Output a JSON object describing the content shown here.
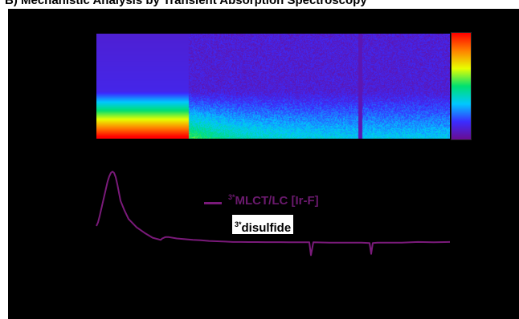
{
  "heading": "B) Mechanistic Analysis by Transient Absorption Spectroscopy",
  "colors": {
    "panel_background": "#000000",
    "trace": "#7a1a7a",
    "legend_text": "#6b1a6e"
  },
  "chart_data": [
    {
      "type": "heatmap",
      "title": "",
      "xlabel": "",
      "ylabel": "",
      "colormap": [
        "#6a0d91",
        "#3b2cff",
        "#00c8ff",
        "#00e070",
        "#e8ff00",
        "#ff8000",
        "#ff0000"
      ],
      "colorbar": "right",
      "features": "strong red signal at lower-left early times decaying into a long-lived green/blue band with a narrow dark line near the right edge"
    },
    {
      "type": "line",
      "title": "",
      "xlabel": "",
      "ylabel": "",
      "grid": false,
      "legend_position": "center",
      "legend": [
        {
          "label_sup": "3*",
          "label": "MLCT/LC [Ir-F]",
          "color": "#7a1a7a"
        },
        {
          "label_sup": "3*",
          "label": "disulfide",
          "color": "#ffffff"
        }
      ],
      "series": [
        {
          "name": "3*MLCT/LC [Ir-F]",
          "x": [
            0,
            2,
            4,
            6,
            8,
            10,
            12,
            14,
            16,
            18,
            20,
            22,
            24,
            26,
            28,
            30,
            35,
            40,
            50,
            60,
            70,
            80,
            82,
            84,
            86,
            90,
            100,
            110,
            120,
            130,
            140,
            150,
            160,
            170,
            180,
            190,
            200,
            210,
            220,
            230,
            240,
            250,
            260,
            265,
            267,
            270,
            290,
            300,
            310,
            330,
            340,
            342,
            344,
            350,
            380,
            400,
            420,
            440
          ],
          "y": [
            0.22,
            0.27,
            0.36,
            0.46,
            0.56,
            0.66,
            0.76,
            0.86,
            0.93,
            0.98,
            1.0,
            0.98,
            0.92,
            0.82,
            0.7,
            0.58,
            0.44,
            0.32,
            0.2,
            0.12,
            0.05,
            0.02,
            0.04,
            0.05,
            0.06,
            0.06,
            0.04,
            0.03,
            0.02,
            0.015,
            0.005,
            0.0,
            -0.005,
            -0.01,
            -0.01,
            -0.012,
            -0.012,
            -0.013,
            -0.013,
            -0.013,
            -0.014,
            -0.014,
            -0.015,
            -0.015,
            -0.2,
            -0.015,
            -0.02,
            -0.02,
            -0.02,
            -0.02,
            -0.025,
            -0.18,
            -0.025,
            -0.02,
            -0.02,
            -0.01,
            -0.015,
            -0.01
          ]
        }
      ]
    }
  ]
}
